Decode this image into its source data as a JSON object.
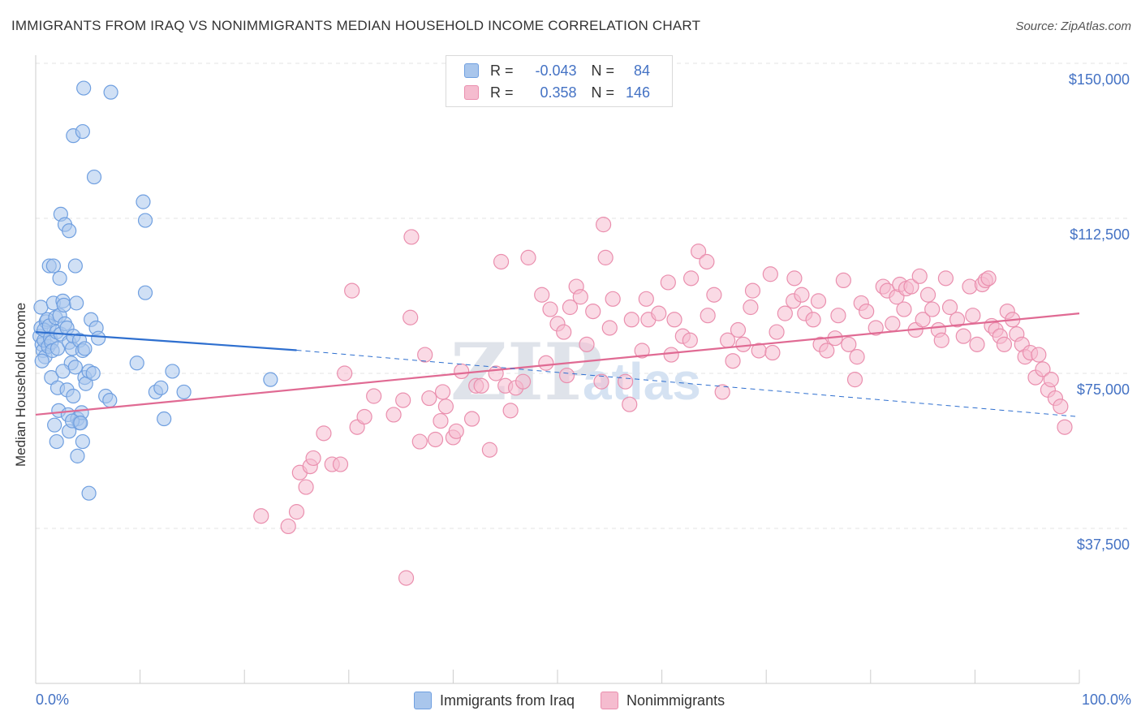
{
  "header": {
    "title": "IMMIGRANTS FROM IRAQ VS NONIMMIGRANTS MEDIAN HOUSEHOLD INCOME CORRELATION CHART",
    "source": "Source: ZipAtlas.com"
  },
  "legend": {
    "rows": [
      {
        "r_label": "R =",
        "r_value": "-0.043",
        "n_label": "N =",
        "n_value": "84"
      },
      {
        "r_label": "R =",
        "r_value": "0.358",
        "n_label": "N =",
        "n_value": "146"
      }
    ]
  },
  "bottom_legend": {
    "items": [
      "Immigrants from Iraq",
      "Nonimmigrants"
    ]
  },
  "x_axis": {
    "min_label": "0.0%",
    "max_label": "100.0%"
  },
  "watermark": {
    "zip": "ZIP",
    "atlas": "atlas"
  },
  "colors": {
    "blue_fill": "#a9c6ec",
    "blue_stroke": "#6f9fe0",
    "blue_line": "#2e6fcf",
    "pink_fill": "#f5bccf",
    "pink_stroke": "#ea8fae",
    "pink_line": "#e06a93",
    "axis_label": "#4472c4",
    "grid": "#e3e3e3"
  },
  "chart_data": {
    "type": "scatter",
    "title": "IMMIGRANTS FROM IRAQ VS NONIMMIGRANTS MEDIAN HOUSEHOLD INCOME CORRELATION CHART",
    "xlabel": "",
    "ylabel": "Median Household Income",
    "xlim": [
      0,
      100
    ],
    "ylim": [
      10000,
      155000
    ],
    "yticks": [
      37500,
      75000,
      112500,
      150000
    ],
    "ytick_labels": [
      "$37,500",
      "$75,000",
      "$112,500",
      "$150,000"
    ],
    "xtick_labels": [
      "0.0%",
      "100.0%"
    ],
    "grid": "horizontal dashed",
    "legend_position": "top-center",
    "series": [
      {
        "name": "Immigrants from Iraq",
        "R": -0.043,
        "N": 84,
        "trend_solid": [
          [
            0.0,
            85000
          ],
          [
            25.0,
            80600
          ]
        ],
        "trend_dashed": [
          [
            25.0,
            80600
          ],
          [
            100.0,
            64500
          ]
        ],
        "points": [
          [
            0.4,
            84000
          ],
          [
            0.5,
            86000
          ],
          [
            0.6,
            82000
          ],
          [
            0.7,
            80500
          ],
          [
            0.8,
            83000
          ],
          [
            0.9,
            79000
          ],
          [
            1.0,
            87500
          ],
          [
            1.1,
            88000
          ],
          [
            1.2,
            81500
          ],
          [
            0.5,
            91000
          ],
          [
            0.6,
            78000
          ],
          [
            0.8,
            85500
          ],
          [
            1.3,
            86500
          ],
          [
            1.4,
            83500
          ],
          [
            1.5,
            82500
          ],
          [
            1.6,
            80500
          ],
          [
            1.7,
            92000
          ],
          [
            1.9,
            88500
          ],
          [
            2.0,
            85000
          ],
          [
            2.1,
            81000
          ],
          [
            2.3,
            89000
          ],
          [
            2.4,
            84500
          ],
          [
            2.6,
            92500
          ],
          [
            2.7,
            91500
          ],
          [
            2.8,
            87000
          ],
          [
            3.0,
            86000
          ],
          [
            3.2,
            82500
          ],
          [
            3.4,
            77500
          ],
          [
            3.5,
            81000
          ],
          [
            3.6,
            84000
          ],
          [
            1.3,
            101000
          ],
          [
            1.7,
            101000
          ],
          [
            2.3,
            98000
          ],
          [
            2.4,
            113500
          ],
          [
            2.8,
            111000
          ],
          [
            3.2,
            109500
          ],
          [
            3.8,
            101000
          ],
          [
            3.9,
            92000
          ],
          [
            4.2,
            83000
          ],
          [
            4.5,
            80500
          ],
          [
            4.7,
            81000
          ],
          [
            5.3,
            88000
          ],
          [
            5.8,
            86000
          ],
          [
            1.5,
            74000
          ],
          [
            1.8,
            62500
          ],
          [
            2.0,
            58500
          ],
          [
            2.2,
            66000
          ],
          [
            2.1,
            71500
          ],
          [
            2.6,
            75500
          ],
          [
            3.0,
            71000
          ],
          [
            3.1,
            65000
          ],
          [
            3.2,
            61000
          ],
          [
            3.6,
            69500
          ],
          [
            3.8,
            76500
          ],
          [
            4.0,
            64000
          ],
          [
            4.0,
            55000
          ],
          [
            4.2,
            63000
          ],
          [
            4.4,
            65500
          ],
          [
            4.5,
            58500
          ],
          [
            4.7,
            74000
          ],
          [
            4.8,
            72500
          ],
          [
            5.1,
            75500
          ],
          [
            5.1,
            46000
          ],
          [
            6.7,
            69500
          ],
          [
            7.1,
            68500
          ],
          [
            4.6,
            144000
          ],
          [
            7.2,
            143000
          ],
          [
            3.6,
            132500
          ],
          [
            4.5,
            133500
          ],
          [
            5.6,
            122500
          ],
          [
            10.3,
            116500
          ],
          [
            10.5,
            112000
          ],
          [
            10.5,
            94500
          ],
          [
            9.7,
            77500
          ],
          [
            11.5,
            70500
          ],
          [
            12.0,
            71500
          ],
          [
            12.3,
            64000
          ],
          [
            13.1,
            75500
          ],
          [
            14.2,
            70500
          ],
          [
            22.5,
            73500
          ],
          [
            3.5,
            63500
          ],
          [
            4.3,
            63000
          ],
          [
            5.5,
            75000
          ],
          [
            6.0,
            83500
          ]
        ]
      },
      {
        "name": "Nonimmigrants",
        "R": 0.358,
        "N": 146,
        "trend_solid": [
          [
            0.0,
            65000
          ],
          [
            100.0,
            89500
          ]
        ],
        "points": [
          [
            21.6,
            40500
          ],
          [
            24.2,
            38000
          ],
          [
            25.0,
            41500
          ],
          [
            25.3,
            51000
          ],
          [
            25.9,
            47500
          ],
          [
            26.3,
            52500
          ],
          [
            26.6,
            54500
          ],
          [
            27.6,
            60500
          ],
          [
            28.4,
            53000
          ],
          [
            29.2,
            53000
          ],
          [
            29.6,
            75000
          ],
          [
            30.3,
            95000
          ],
          [
            30.8,
            62000
          ],
          [
            31.5,
            64500
          ],
          [
            32.4,
            69500
          ],
          [
            34.3,
            65000
          ],
          [
            35.2,
            68500
          ],
          [
            35.5,
            25500
          ],
          [
            35.9,
            88500
          ],
          [
            36.0,
            108000
          ],
          [
            36.8,
            58500
          ],
          [
            37.3,
            79500
          ],
          [
            37.7,
            69000
          ],
          [
            38.3,
            59000
          ],
          [
            38.8,
            63500
          ],
          [
            39.0,
            70500
          ],
          [
            39.3,
            67000
          ],
          [
            40.0,
            59500
          ],
          [
            40.3,
            61000
          ],
          [
            40.8,
            75500
          ],
          [
            41.8,
            64000
          ],
          [
            42.2,
            72000
          ],
          [
            42.7,
            72000
          ],
          [
            43.5,
            56500
          ],
          [
            44.1,
            75000
          ],
          [
            44.6,
            102000
          ],
          [
            45.0,
            72000
          ],
          [
            45.5,
            66000
          ],
          [
            46.0,
            71500
          ],
          [
            46.7,
            73000
          ],
          [
            47.2,
            103000
          ],
          [
            48.5,
            94000
          ],
          [
            48.9,
            77500
          ],
          [
            49.3,
            90500
          ],
          [
            50.0,
            87000
          ],
          [
            50.6,
            85000
          ],
          [
            50.9,
            74500
          ],
          [
            51.2,
            91000
          ],
          [
            51.8,
            96000
          ],
          [
            52.2,
            93500
          ],
          [
            52.8,
            82000
          ],
          [
            53.4,
            90000
          ],
          [
            54.2,
            73000
          ],
          [
            54.4,
            111000
          ],
          [
            54.6,
            103000
          ],
          [
            55.0,
            86000
          ],
          [
            55.3,
            93000
          ],
          [
            56.5,
            73000
          ],
          [
            56.9,
            67500
          ],
          [
            57.1,
            88000
          ],
          [
            58.1,
            80500
          ],
          [
            58.5,
            93000
          ],
          [
            58.7,
            88000
          ],
          [
            59.7,
            89500
          ],
          [
            60.6,
            97000
          ],
          [
            60.9,
            79500
          ],
          [
            61.2,
            88000
          ],
          [
            62.0,
            84000
          ],
          [
            62.8,
            98000
          ],
          [
            62.7,
            83000
          ],
          [
            63.5,
            104500
          ],
          [
            64.3,
            102000
          ],
          [
            64.4,
            89000
          ],
          [
            65.0,
            94000
          ],
          [
            65.8,
            70500
          ],
          [
            66.3,
            83000
          ],
          [
            66.8,
            78000
          ],
          [
            67.3,
            85500
          ],
          [
            67.8,
            82000
          ],
          [
            68.5,
            91000
          ],
          [
            68.7,
            95000
          ],
          [
            69.3,
            80500
          ],
          [
            70.4,
            99000
          ],
          [
            70.6,
            80000
          ],
          [
            71.0,
            85000
          ],
          [
            71.8,
            89500
          ],
          [
            72.6,
            92500
          ],
          [
            72.7,
            98000
          ],
          [
            73.4,
            94000
          ],
          [
            73.7,
            89500
          ],
          [
            74.5,
            88000
          ],
          [
            75.0,
            92500
          ],
          [
            75.2,
            82000
          ],
          [
            75.8,
            80500
          ],
          [
            76.6,
            83500
          ],
          [
            76.9,
            89000
          ],
          [
            77.4,
            97500
          ],
          [
            77.9,
            82000
          ],
          [
            78.5,
            73500
          ],
          [
            78.7,
            79000
          ],
          [
            79.1,
            92000
          ],
          [
            79.6,
            90000
          ],
          [
            80.5,
            86000
          ],
          [
            81.2,
            96000
          ],
          [
            81.6,
            95000
          ],
          [
            82.1,
            87000
          ],
          [
            82.5,
            93500
          ],
          [
            82.8,
            96500
          ],
          [
            83.2,
            90500
          ],
          [
            83.4,
            95500
          ],
          [
            83.9,
            96000
          ],
          [
            84.3,
            85500
          ],
          [
            84.7,
            98500
          ],
          [
            85.0,
            88000
          ],
          [
            85.5,
            94000
          ],
          [
            85.9,
            90500
          ],
          [
            86.5,
            85500
          ],
          [
            86.8,
            83000
          ],
          [
            87.2,
            98000
          ],
          [
            87.6,
            91000
          ],
          [
            88.3,
            88000
          ],
          [
            88.9,
            84000
          ],
          [
            89.5,
            96000
          ],
          [
            89.8,
            89000
          ],
          [
            90.2,
            82000
          ],
          [
            90.7,
            96500
          ],
          [
            91.0,
            97500
          ],
          [
            91.3,
            98000
          ],
          [
            91.6,
            86500
          ],
          [
            92.0,
            85500
          ],
          [
            92.4,
            84000
          ],
          [
            92.8,
            82000
          ],
          [
            93.1,
            90000
          ],
          [
            93.6,
            88000
          ],
          [
            94.0,
            84500
          ],
          [
            94.5,
            82000
          ],
          [
            94.8,
            79000
          ],
          [
            95.3,
            80000
          ],
          [
            95.8,
            74000
          ],
          [
            96.1,
            79500
          ],
          [
            96.5,
            76000
          ],
          [
            97.0,
            71000
          ],
          [
            97.3,
            73500
          ],
          [
            97.7,
            69000
          ],
          [
            98.2,
            67000
          ],
          [
            98.6,
            62000
          ]
        ]
      }
    ]
  }
}
